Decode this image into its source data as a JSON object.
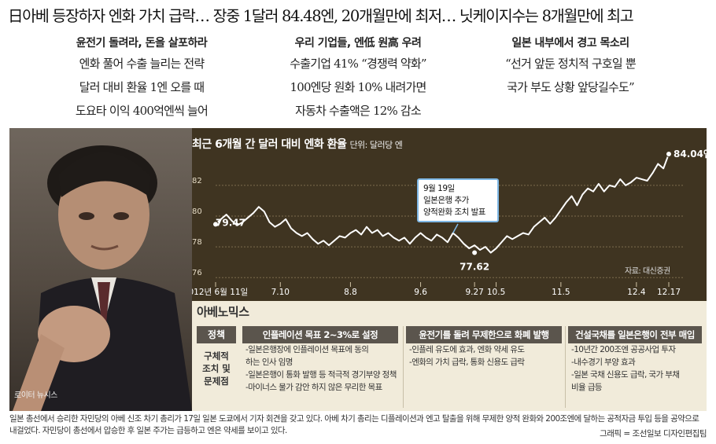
{
  "headline": "日아베 등장하자 엔화 가치 급락… 장중 1달러 84.48엔, 20개월만에 최저… 닛케이지수는 8개월만에 최고",
  "columns": [
    {
      "heading": "윤전기 돌려라, 돈을 살포하라",
      "lines": [
        "엔화 풀어 수출 늘리는 전략",
        "달러 대비 환율 1엔 오를 때",
        "도요타 이익 400억엔씩 늘어"
      ]
    },
    {
      "heading": "우리 기업들, 엔低 원高 우려",
      "lines": [
        "수출기업 41% “경쟁력 약화”",
        "100엔당 원화 10% 내려가면",
        "자동차 수출액은 12% 감소"
      ]
    },
    {
      "heading": "일본 내부에서 경고 목소리",
      "lines": [
        "“선거 앞둔 정치적 구호일 뿐",
        "국가 부도 상황 앞당길수도”"
      ]
    }
  ],
  "photo_credit": "로이터 뉴시스",
  "chart": {
    "source": "자료: 대신증권",
    "callout": {
      "line1": "9월 19일",
      "line2": "일본은행 추가",
      "line3": "양적완화 조치 발표"
    }
  },
  "chart_data": {
    "type": "line",
    "title": "최근 6개월 간 달러 대비 엔화 환율",
    "unit": "단위: 달러당 엔",
    "ylim": [
      75.5,
      84.6
    ],
    "yticks": [
      76,
      78,
      80,
      82
    ],
    "xticks": [
      "2012년 6월 11일",
      "7.10",
      "8.8",
      "9.6",
      "9.27",
      "10.5",
      "11.5",
      "12.4",
      "12.17"
    ],
    "annotations": [
      {
        "x": "2012년 6월 11일",
        "y": 79.47,
        "label": "79.47"
      },
      {
        "x": "9.27",
        "y": 77.62,
        "label": "77.62"
      },
      {
        "x": "12.17",
        "y": 84.04,
        "label": "84.04엔"
      }
    ],
    "series": [
      {
        "values": [
          79.47,
          79.8,
          80.1,
          79.7,
          79.4,
          79.6,
          79.9,
          80.2,
          80.6,
          80.3,
          79.6,
          79.3,
          79.5,
          79.8,
          79.2,
          78.9,
          78.7,
          78.9,
          78.5,
          78.2,
          78.4,
          78.1,
          78.4,
          78.7,
          78.6,
          78.9,
          79.1,
          78.8,
          79.3,
          78.9,
          79.1,
          78.7,
          78.9,
          78.6,
          78.4,
          78.6,
          78.2,
          78.6,
          78.9,
          78.6,
          78.4,
          78.8,
          78.6,
          78.3,
          78.9,
          78.6,
          78.2,
          77.9,
          78.1,
          77.8,
          78.0,
          77.62,
          77.9,
          78.3,
          78.7,
          78.5,
          78.7,
          78.9,
          78.8,
          79.3,
          79.6,
          79.9,
          79.5,
          79.9,
          80.4,
          80.9,
          81.3,
          80.7,
          81.4,
          81.8,
          81.6,
          82.1,
          81.6,
          82.0,
          81.9,
          82.4,
          82.0,
          82.2,
          82.5,
          82.4,
          82.3,
          82.8,
          83.4,
          83.1,
          84.04
        ]
      }
    ]
  },
  "abenomics": {
    "title": "아베노믹스",
    "policy_label": "정책",
    "policy_sub": [
      "구체적",
      "조치 및",
      "문제점"
    ],
    "columns": [
      {
        "heading": "인플레이션 목표 2~3%로 설정",
        "items": [
          "-일본은행장에 인플레이션 목표에 동의",
          "하는 인사 임명",
          "-일본은행이 통화 발행 등 적극적 경기부양 정책",
          "-마이너스 물가 감안 하지 않은 무리한 목표"
        ]
      },
      {
        "heading": "윤전기를 돌려 무제한으로 화폐 발행",
        "items": [
          "-인플레 유도에 효과, 엔화 약세 유도",
          "-엔화의 가치 급락, 통화 신용도 급락"
        ]
      },
      {
        "heading": "건설국채를 일본은행이 전부 매입",
        "items": [
          "-10년간 200조엔 공공사업 투자",
          "-내수경기 부양 효과",
          "-일본 국채 신용도 급락, 국가 부채",
          "비율 급등"
        ]
      }
    ]
  },
  "caption": "일본 총선에서 승리한 자민당의 아베 신조 차기 총리가 17일 일본 도쿄에서 기자 회견을 갖고 있다. 아베 차기 총리는 디플레이션과 엔고 탈출을 위해 무제한 양적 완화와 200조엔에 달하는 공적자금 투입 등을 공약으로 내걸었다. 자민당이 총선에서 압승한 후 일본 주가는 급등하고 엔은 약세를 보이고 있다.",
  "credit": "그래픽 = 조선일보 디자인편집팀"
}
